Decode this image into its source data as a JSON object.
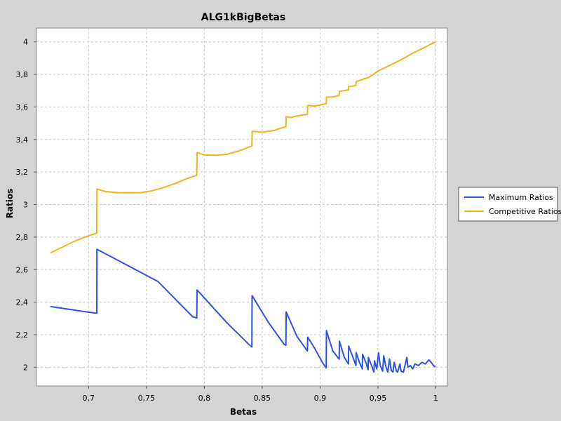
{
  "chart_data": {
    "type": "line",
    "title": "ALG1kBigBetas",
    "xlabel": "Betas",
    "ylabel": "Ratios",
    "xlim": [
      0.655,
      1.01
    ],
    "ylim": [
      1.885,
      4.085
    ],
    "grid": true,
    "legend_position": "right",
    "x_ticks": [
      "0,7",
      "0,75",
      "0,8",
      "0,85",
      "0,9",
      "0,95",
      "1"
    ],
    "y_ticks": [
      "2",
      "2,2",
      "2,4",
      "2,6",
      "2,8",
      "3",
      "3,2",
      "3,4",
      "3,6",
      "3,8",
      "4"
    ],
    "series": [
      {
        "name": "Maximum Ratios",
        "color": "#2a52e8",
        "x": [
          0.667,
          0.675,
          0.685,
          0.695,
          0.7071,
          0.7072,
          0.73,
          0.76,
          0.79,
          0.7935,
          0.7937,
          0.82,
          0.84,
          0.8411,
          0.8413,
          0.855,
          0.869,
          0.8705,
          0.8707,
          0.88,
          0.8891,
          0.8893,
          0.895,
          0.902,
          0.9053,
          0.9055,
          0.911,
          0.9165,
          0.9167,
          0.921,
          0.9245,
          0.9247,
          0.929,
          0.931,
          0.9312,
          0.934,
          0.9365,
          0.9367,
          0.94,
          0.9415,
          0.9417,
          0.945,
          0.9465,
          0.947,
          0.949,
          0.9505,
          0.952,
          0.954,
          0.955,
          0.957,
          0.9585,
          0.96,
          0.9615,
          0.963,
          0.964,
          0.966,
          0.967,
          0.969,
          0.97,
          0.972,
          0.975,
          0.976,
          0.978,
          0.98,
          0.982,
          0.985,
          0.988,
          0.991,
          0.994,
          0.996,
          0.998,
          0.9995
        ],
        "y": [
          2.373,
          2.365,
          2.354,
          2.343,
          2.332,
          2.725,
          2.64,
          2.527,
          2.31,
          2.303,
          2.475,
          2.27,
          2.13,
          2.125,
          2.44,
          2.28,
          2.14,
          2.135,
          2.34,
          2.19,
          2.1,
          2.185,
          2.12,
          2.03,
          1.995,
          2.225,
          2.1,
          2.05,
          2.16,
          2.06,
          2.02,
          2.13,
          2.05,
          2.01,
          2.09,
          2.03,
          1.99,
          2.08,
          2.02,
          1.985,
          2.06,
          2.0,
          1.97,
          2.04,
          1.99,
          2.09,
          2.01,
          1.975,
          2.07,
          2.0,
          1.97,
          2.05,
          1.98,
          1.97,
          2.03,
          1.975,
          1.97,
          2.02,
          1.975,
          1.97,
          2.06,
          2.0,
          2.01,
          1.99,
          2.02,
          2.01,
          2.03,
          2.02,
          2.045,
          2.03,
          2.01,
          2.0
        ]
      },
      {
        "name": "Competitive Ratios",
        "color": "#f5b21c",
        "x": [
          0.667,
          0.675,
          0.685,
          0.695,
          0.7071,
          0.7072,
          0.715,
          0.725,
          0.735,
          0.745,
          0.755,
          0.765,
          0.775,
          0.785,
          0.7935,
          0.7937,
          0.8,
          0.81,
          0.82,
          0.83,
          0.8411,
          0.8413,
          0.85,
          0.86,
          0.8705,
          0.8707,
          0.875,
          0.88,
          0.8891,
          0.8893,
          0.895,
          0.9053,
          0.9055,
          0.91,
          0.9165,
          0.9167,
          0.92,
          0.9245,
          0.9247,
          0.93,
          0.931,
          0.9312,
          0.937,
          0.9415,
          0.945,
          0.95,
          0.96,
          0.97,
          0.98,
          0.99,
          0.9995
        ],
        "y": [
          2.703,
          2.73,
          2.765,
          2.795,
          2.825,
          3.095,
          3.08,
          3.073,
          3.072,
          3.073,
          3.085,
          3.105,
          3.13,
          3.16,
          3.18,
          3.32,
          3.305,
          3.303,
          3.31,
          3.33,
          3.36,
          3.45,
          3.445,
          3.455,
          3.48,
          3.54,
          3.535,
          3.545,
          3.555,
          3.61,
          3.605,
          3.62,
          3.66,
          3.66,
          3.67,
          3.695,
          3.7,
          3.705,
          3.725,
          3.73,
          3.735,
          3.755,
          3.77,
          3.78,
          3.795,
          3.82,
          3.855,
          3.89,
          3.93,
          3.965,
          4.0
        ]
      }
    ]
  }
}
